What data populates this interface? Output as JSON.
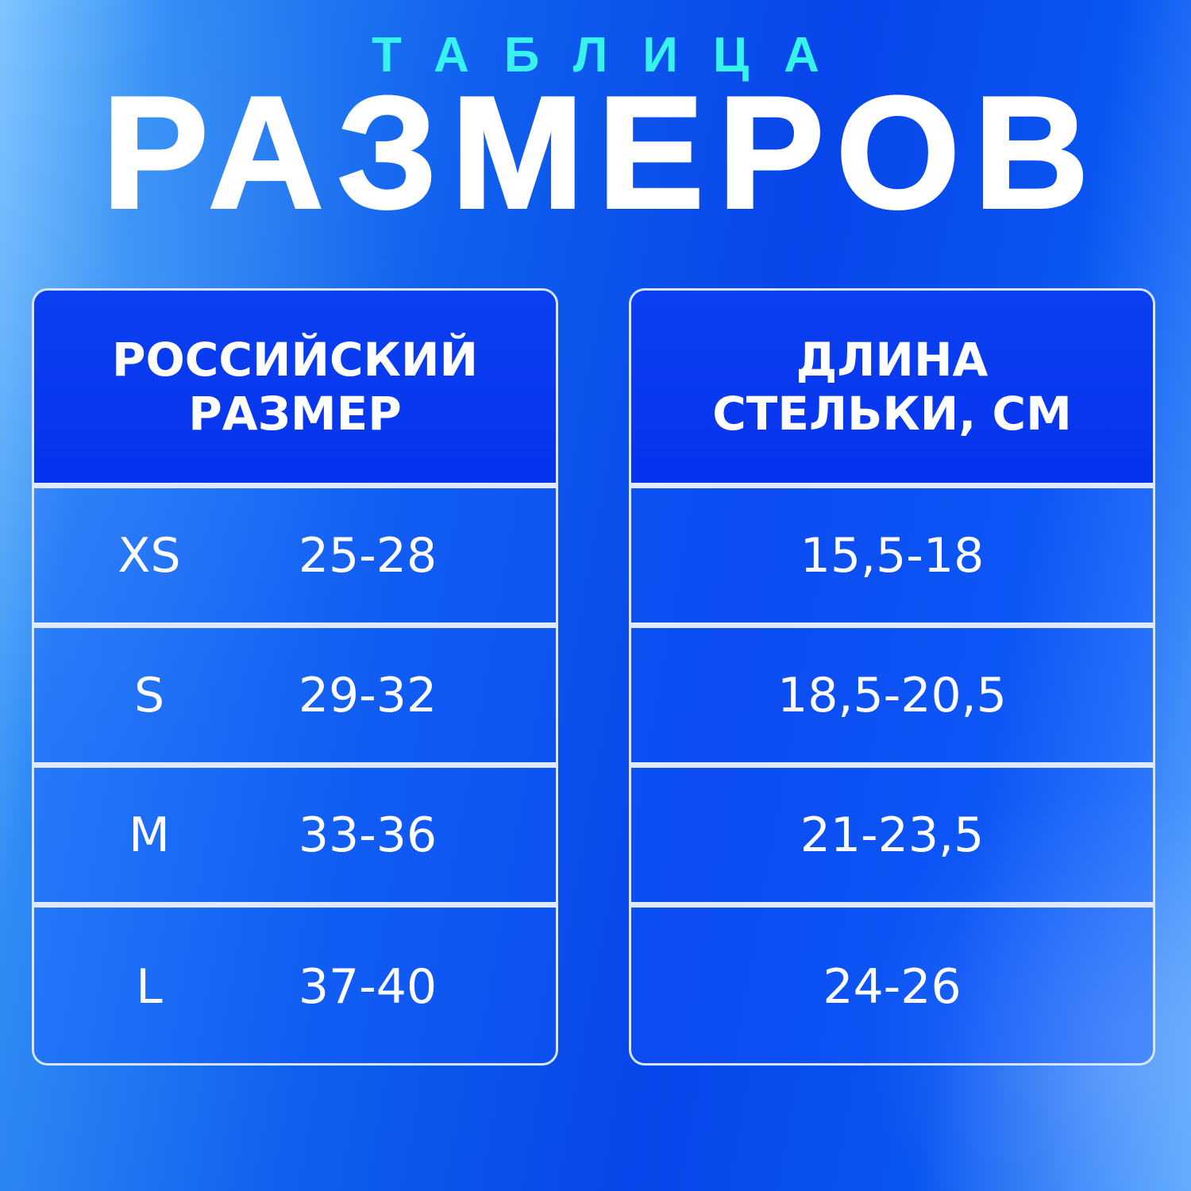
{
  "header": {
    "subtitle": "ТАБЛИЦА",
    "title": "РАЗМЕРОВ"
  },
  "colors": {
    "subtitle": "#38f2f0",
    "title": "#ffffff",
    "background": "#0845ea",
    "border": "#d6e6ff"
  },
  "left_table": {
    "header_line1": "РОССИЙСКИЙ",
    "header_line2": "РАЗМЕР",
    "rows": [
      {
        "size": "XS",
        "range": "25-28"
      },
      {
        "size": "S",
        "range": "29-32"
      },
      {
        "size": "M",
        "range": "33-36"
      },
      {
        "size": "L",
        "range": "37-40"
      }
    ]
  },
  "right_table": {
    "header_line1": "ДЛИНА",
    "header_line2": "СТЕЛЬКИ, СМ",
    "rows": [
      "15,5-18",
      "18,5-20,5",
      "21-23,5",
      "24-26"
    ]
  }
}
